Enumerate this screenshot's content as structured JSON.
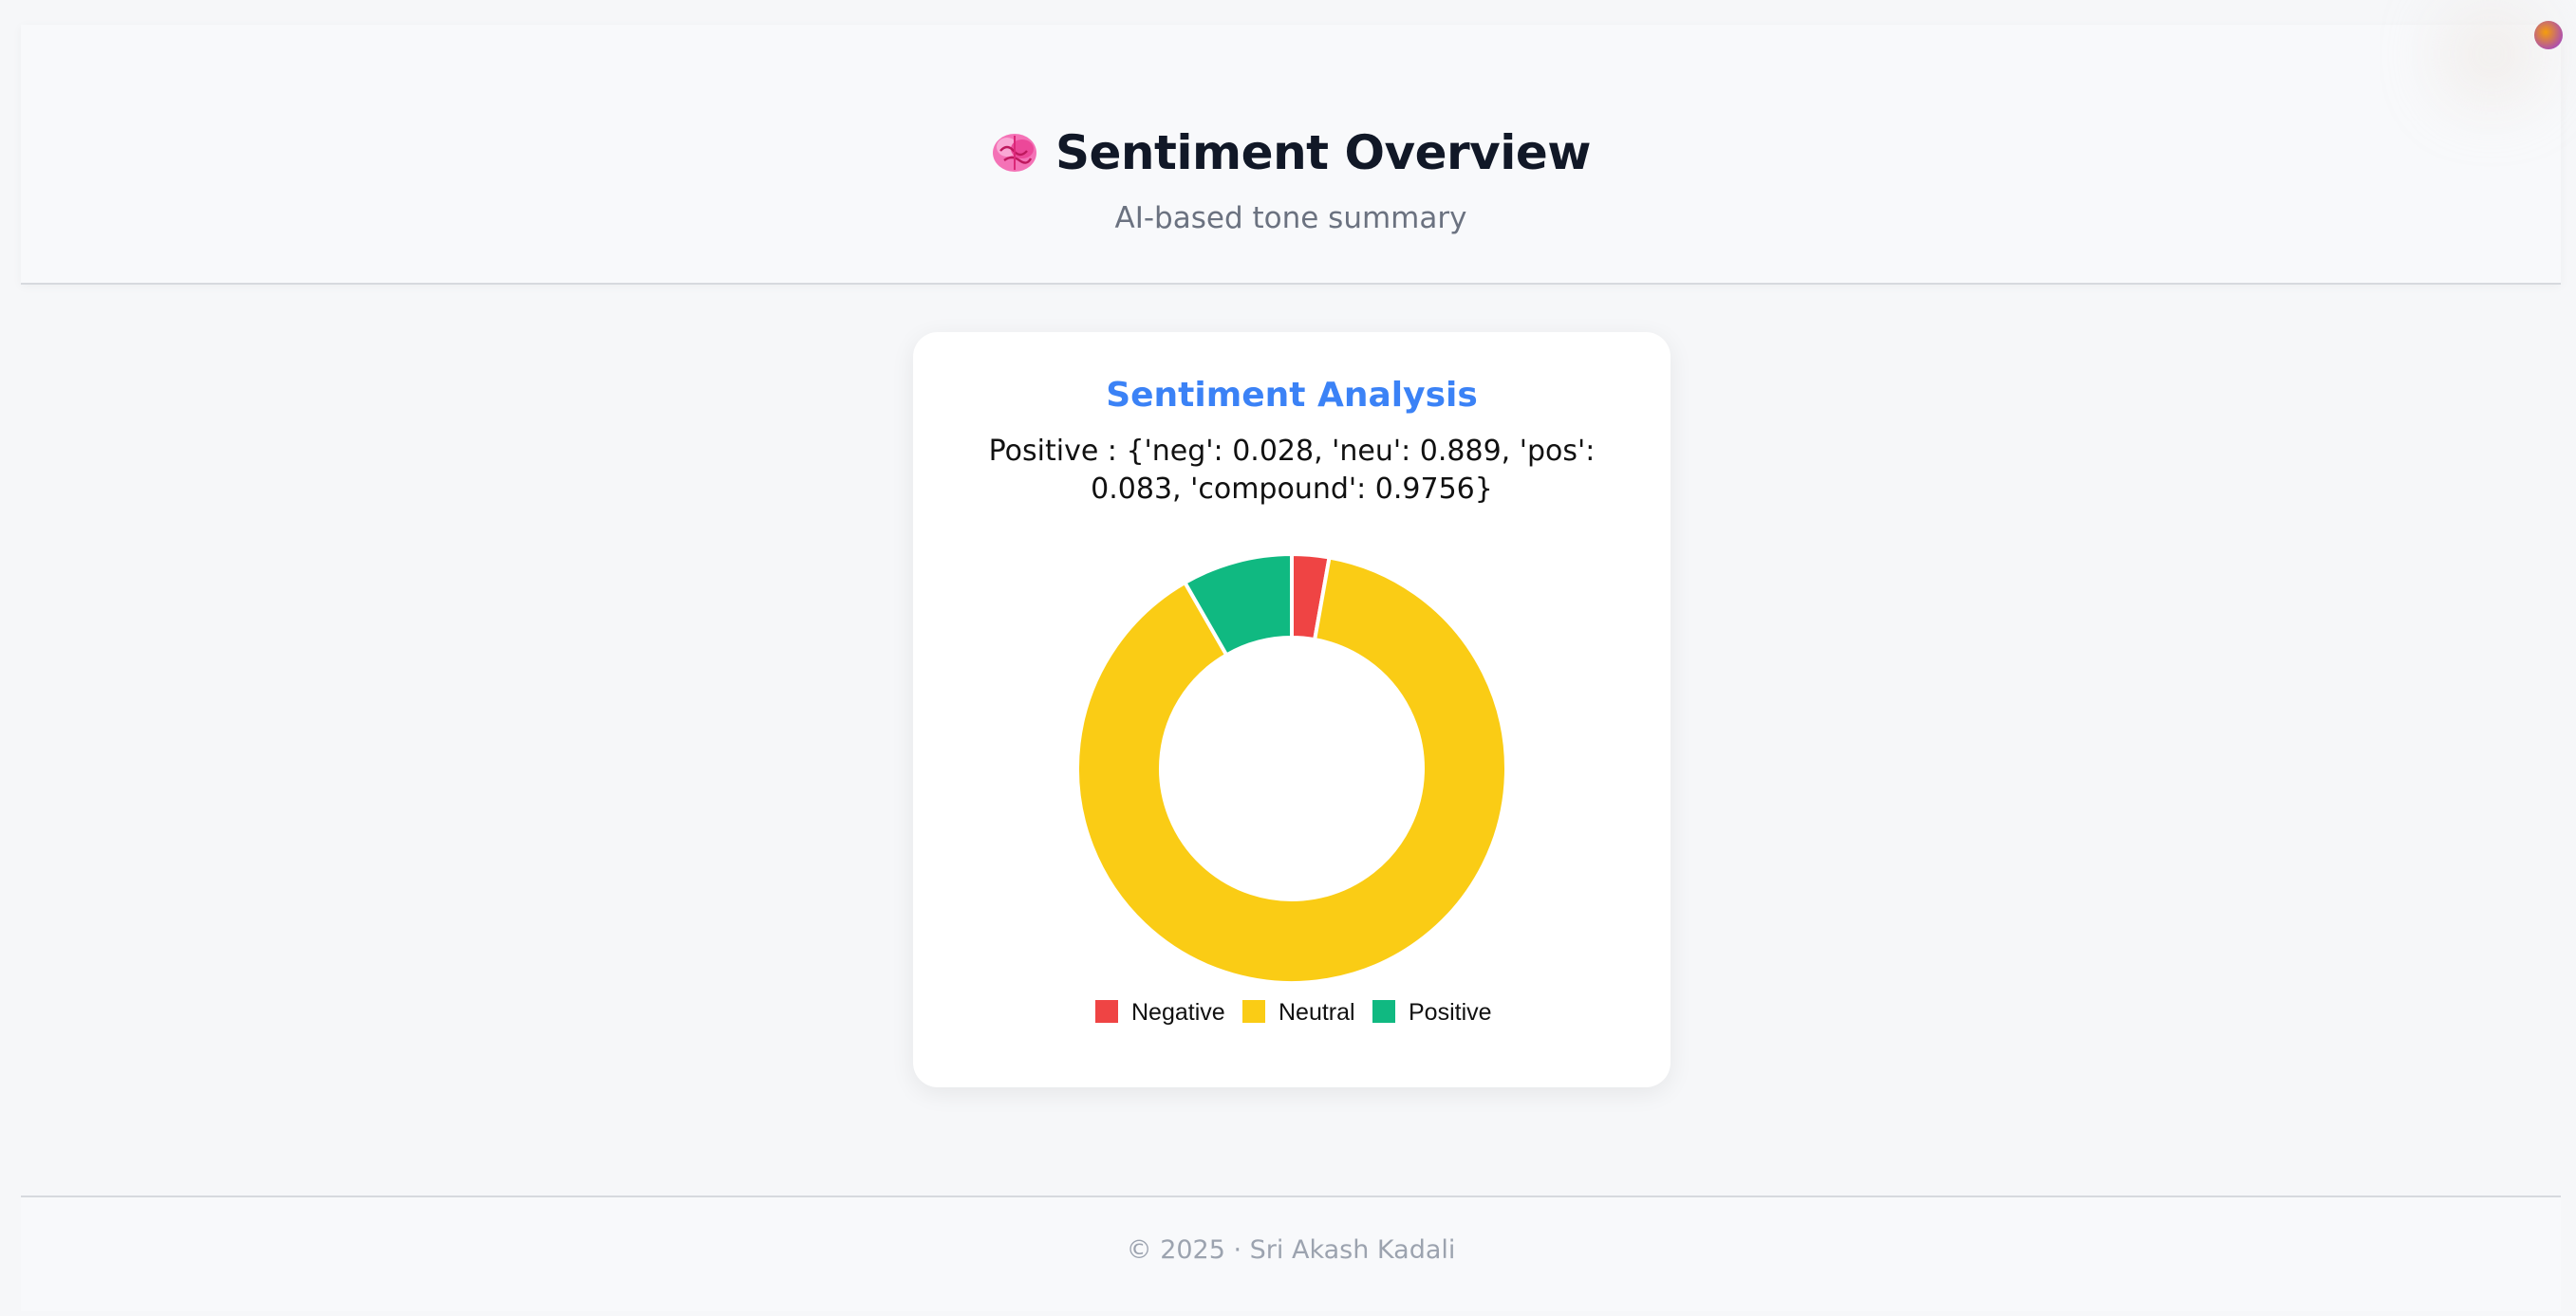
{
  "header": {
    "icon": "brain-icon",
    "title": "Sentiment Overview",
    "subtitle": "AI-based tone summary"
  },
  "card": {
    "title": "Sentiment Analysis",
    "summary": "Positive : {'neg': 0.028, 'neu': 0.889, 'pos': 0.083, 'compound': 0.9756}"
  },
  "chart_data": {
    "type": "pie",
    "variant": "doughnut",
    "title": "Sentiment Analysis",
    "categories": [
      "Negative",
      "Neutral",
      "Positive"
    ],
    "values": [
      0.028,
      0.889,
      0.083
    ],
    "colors": [
      "#ef4444",
      "#facc15",
      "#10b981"
    ],
    "legend": "bottom"
  },
  "footer": {
    "copyright": "© 2025 · Sri Akash Kadali"
  }
}
